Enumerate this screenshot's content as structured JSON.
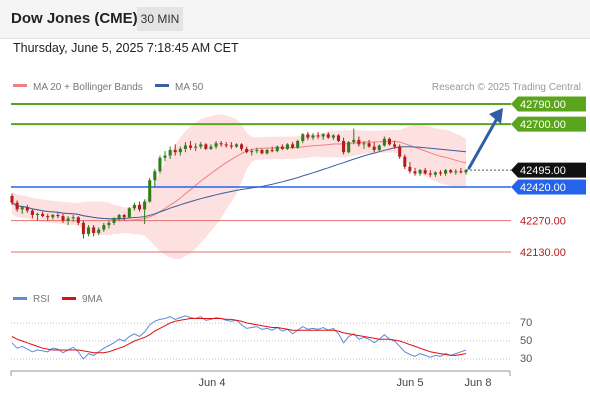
{
  "header": {
    "title": "Dow Jones (CME)",
    "interval": "30 MIN"
  },
  "datetime": "Thursday, June 5, 2025 7:18:45 AM CET",
  "legend": {
    "ma20_label": "MA 20 + Bollinger Bands",
    "ma50_label": "MA 50",
    "attribution": "Research © 2025 Trading Central"
  },
  "colors": {
    "ma20": "#f08080",
    "ma50": "#3a5f9e",
    "band_fill": "#fde0e0",
    "resistance": "#5aa51c",
    "support": "#2563eb",
    "lower_support": "#e57373",
    "bull_candle": "#2e7d1a",
    "bear_candle": "#b71c1c",
    "rsi": "#5b8dd9",
    "rsi_ma": "#e01010",
    "arrow": "#2f5ea8"
  },
  "levels": [
    {
      "label": "42790.00",
      "style": "green"
    },
    {
      "label": "42700.00",
      "style": "green"
    },
    {
      "label": "42495.00",
      "style": "current"
    },
    {
      "label": "42420.00",
      "style": "blue"
    },
    {
      "label": "42270.00",
      "style": "red"
    },
    {
      "label": "42130.00",
      "style": "red"
    }
  ],
  "rsi_panel": {
    "rsi_label": "RSI",
    "ma_label": "9MA",
    "ticks": [
      "70",
      "50",
      "30"
    ]
  },
  "x_axis": {
    "labels": [
      "Jun 4",
      "Jun 5",
      "Jun 8"
    ]
  },
  "chart_data": {
    "type": "candlestick",
    "y_range": [
      42080,
      42820
    ],
    "candles": [
      [
        42380,
        42390,
        42340,
        42350
      ],
      [
        42350,
        42360,
        42310,
        42320
      ],
      [
        42320,
        42335,
        42300,
        42330
      ],
      [
        42330,
        42340,
        42305,
        42315
      ],
      [
        42315,
        42320,
        42280,
        42295
      ],
      [
        42295,
        42305,
        42270,
        42300
      ],
      [
        42300,
        42310,
        42285,
        42290
      ],
      [
        42290,
        42300,
        42270,
        42285
      ],
      [
        42285,
        42300,
        42275,
        42295
      ],
      [
        42295,
        42305,
        42280,
        42290
      ],
      [
        42290,
        42300,
        42260,
        42270
      ],
      [
        42270,
        42290,
        42250,
        42280
      ],
      [
        42280,
        42295,
        42265,
        42285
      ],
      [
        42285,
        42290,
        42250,
        42260
      ],
      [
        42260,
        42270,
        42190,
        42210
      ],
      [
        42210,
        42250,
        42200,
        42240
      ],
      [
        42240,
        42250,
        42200,
        42215
      ],
      [
        42215,
        42240,
        42205,
        42230
      ],
      [
        42230,
        42260,
        42220,
        42250
      ],
      [
        42250,
        42270,
        42235,
        42260
      ],
      [
        42260,
        42285,
        42250,
        42280
      ],
      [
        42280,
        42300,
        42270,
        42295
      ],
      [
        42295,
        42300,
        42270,
        42285
      ],
      [
        42285,
        42330,
        42280,
        42325
      ],
      [
        42325,
        42350,
        42315,
        42340
      ],
      [
        42340,
        42355,
        42310,
        42320
      ],
      [
        42320,
        42365,
        42255,
        42355
      ],
      [
        42355,
        42460,
        42350,
        42450
      ],
      [
        42450,
        42500,
        42420,
        42490
      ],
      [
        42490,
        42560,
        42480,
        42550
      ],
      [
        42550,
        42580,
        42535,
        42560
      ],
      [
        42560,
        42600,
        42545,
        42585
      ],
      [
        42585,
        42610,
        42560,
        42575
      ],
      [
        42575,
        42600,
        42560,
        42590
      ],
      [
        42590,
        42620,
        42575,
        42605
      ],
      [
        42605,
        42625,
        42585,
        42595
      ],
      [
        42595,
        42615,
        42580,
        42600
      ],
      [
        42600,
        42620,
        42590,
        42610
      ],
      [
        42610,
        42615,
        42585,
        42590
      ],
      [
        42590,
        42610,
        42585,
        42600
      ],
      [
        42600,
        42625,
        42590,
        42615
      ],
      [
        42615,
        42625,
        42600,
        42610
      ],
      [
        42610,
        42620,
        42595,
        42605
      ],
      [
        42605,
        42620,
        42590,
        42600
      ],
      [
        42600,
        42615,
        42595,
        42610
      ],
      [
        42610,
        42615,
        42580,
        42590
      ],
      [
        42590,
        42600,
        42570,
        42575
      ],
      [
        42575,
        42590,
        42560,
        42580
      ],
      [
        42580,
        42595,
        42570,
        42585
      ],
      [
        42585,
        42590,
        42565,
        42570
      ],
      [
        42570,
        42590,
        42565,
        42585
      ],
      [
        42585,
        42600,
        42575,
        42580
      ],
      [
        42580,
        42605,
        42575,
        42600
      ],
      [
        42600,
        42610,
        42585,
        42590
      ],
      [
        42590,
        42615,
        42585,
        42610
      ],
      [
        42610,
        42620,
        42590,
        42595
      ],
      [
        42595,
        42630,
        42590,
        42625
      ],
      [
        42625,
        42660,
        42615,
        42655
      ],
      [
        42655,
        42665,
        42630,
        42640
      ],
      [
        42640,
        42660,
        42630,
        42650
      ],
      [
        42650,
        42665,
        42635,
        42645
      ],
      [
        42645,
        42660,
        42630,
        42655
      ],
      [
        42655,
        42665,
        42635,
        42640
      ],
      [
        42640,
        42655,
        42630,
        42650
      ],
      [
        42650,
        42655,
        42620,
        42625
      ],
      [
        42625,
        42640,
        42565,
        42575
      ],
      [
        42575,
        42625,
        42570,
        42620
      ],
      [
        42620,
        42680,
        42610,
        42630
      ],
      [
        42630,
        42645,
        42600,
        42610
      ],
      [
        42610,
        42625,
        42590,
        42615
      ],
      [
        42615,
        42630,
        42595,
        42600
      ],
      [
        42600,
        42620,
        42575,
        42585
      ],
      [
        42585,
        42610,
        42580,
        42605
      ],
      [
        42605,
        42645,
        42600,
        42635
      ],
      [
        42635,
        42640,
        42605,
        42610
      ],
      [
        42610,
        42625,
        42590,
        42600
      ],
      [
        42600,
        42610,
        42545,
        42555
      ],
      [
        42555,
        42565,
        42500,
        42510
      ],
      [
        42510,
        42530,
        42480,
        42490
      ],
      [
        42490,
        42505,
        42470,
        42480
      ],
      [
        42480,
        42500,
        42470,
        42495
      ],
      [
        42495,
        42505,
        42475,
        42480
      ],
      [
        42480,
        42495,
        42465,
        42475
      ],
      [
        42475,
        42490,
        42465,
        42485
      ],
      [
        42485,
        42495,
        42470,
        42480
      ],
      [
        42480,
        42500,
        42470,
        42495
      ],
      [
        42495,
        42500,
        42480,
        42485
      ],
      [
        42485,
        42500,
        42475,
        42490
      ],
      [
        42490,
        42505,
        42480,
        42485
      ],
      [
        42485,
        42500,
        42475,
        42495
      ]
    ],
    "rsi": [
      48,
      42,
      44,
      41,
      38,
      40,
      39,
      38,
      42,
      41,
      37,
      40,
      43,
      38,
      30,
      36,
      34,
      38,
      42,
      45,
      48,
      52,
      50,
      55,
      58,
      55,
      60,
      68,
      72,
      74,
      75,
      77,
      74,
      76,
      78,
      76,
      75,
      77,
      73,
      74,
      76,
      75,
      73,
      72,
      73,
      68,
      64,
      65,
      66,
      63,
      64,
      62,
      65,
      61,
      63,
      58,
      62,
      66,
      63,
      64,
      63,
      65,
      62,
      64,
      58,
      48,
      55,
      58,
      52,
      54,
      52,
      48,
      52,
      57,
      52,
      50,
      44,
      38,
      35,
      33,
      36,
      34,
      32,
      34,
      33,
      36,
      34,
      36,
      38,
      40
    ],
    "rsi_ma": [
      55,
      52,
      50,
      48,
      46,
      44,
      42,
      41,
      40,
      40,
      40,
      40,
      40,
      40,
      39,
      38,
      37,
      37,
      37,
      38,
      40,
      42,
      44,
      47,
      50,
      52,
      54,
      57,
      61,
      64,
      67,
      70,
      72,
      73,
      74,
      75,
      75,
      75,
      75,
      75,
      75,
      75,
      74,
      74,
      73,
      72,
      70,
      69,
      68,
      67,
      66,
      65,
      65,
      64,
      63,
      62,
      62,
      62,
      62,
      62,
      62,
      62,
      62,
      62,
      61,
      59,
      58,
      57,
      56,
      55,
      54,
      53,
      52,
      52,
      52,
      51,
      50,
      48,
      46,
      44,
      42,
      40,
      38,
      37,
      36,
      35,
      34,
      34,
      35,
      36
    ],
    "x_labels": [
      "Jun 4",
      "Jun 5",
      "Jun 8"
    ]
  }
}
